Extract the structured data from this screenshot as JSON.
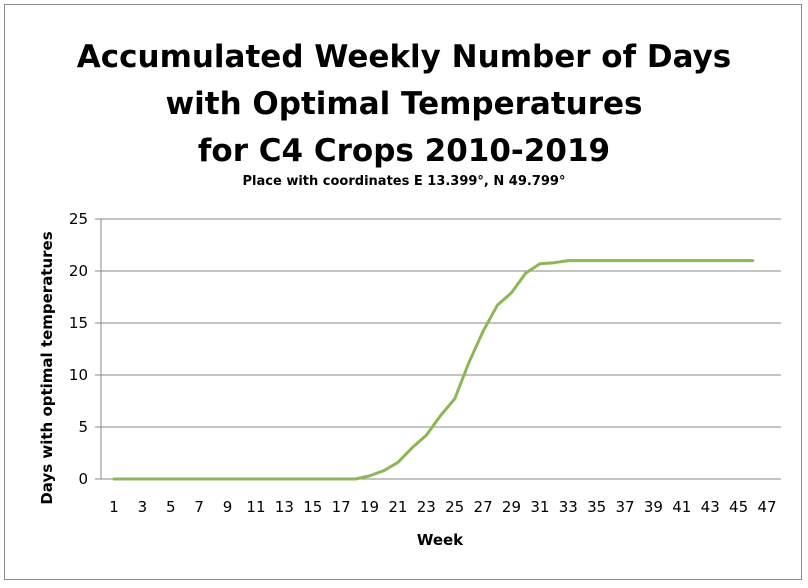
{
  "chart_data": {
    "type": "line",
    "title_lines": [
      "Accumulated Weekly Number of Days",
      "with Optimal Temperatures",
      "for C4 Crops 2010-2019"
    ],
    "subtitle": "Place with coordinates E 13.399°, N 49.799°",
    "xlabel": "Week",
    "ylabel": "Days with optimal temperatures",
    "xlim": [
      1,
      47
    ],
    "ylim": [
      0,
      25
    ],
    "x_tick_labels": [
      "1",
      "3",
      "5",
      "7",
      "9",
      "11",
      "13",
      "15",
      "17",
      "19",
      "21",
      "23",
      "25",
      "27",
      "29",
      "31",
      "33",
      "35",
      "37",
      "39",
      "41",
      "43",
      "45",
      "47"
    ],
    "y_tick_labels": [
      "0",
      "5",
      "10",
      "15",
      "20",
      "25"
    ],
    "grid": true,
    "legend": "none",
    "colors": {
      "line": "#8db657",
      "grid": "#898989",
      "axis": "#898989"
    },
    "series": [
      {
        "x": [
          1,
          2,
          3,
          4,
          5,
          6,
          7,
          8,
          9,
          10,
          11,
          12,
          13,
          14,
          15,
          16,
          17,
          18,
          19,
          20,
          21,
          22,
          23,
          24,
          25,
          26,
          27,
          28,
          29,
          30,
          31,
          32,
          33,
          34,
          35,
          36,
          37,
          38,
          39,
          40,
          41,
          42,
          43,
          44,
          45,
          46
        ],
        "values": [
          0,
          0,
          0,
          0,
          0,
          0,
          0,
          0,
          0,
          0,
          0,
          0,
          0,
          0,
          0,
          0,
          0,
          0,
          0.3,
          0.8,
          1.6,
          3.0,
          4.2,
          6.1,
          7.7,
          11.2,
          14.2,
          16.7,
          17.9,
          19.8,
          20.7,
          20.8,
          21.0,
          21.0,
          21.0,
          21.0,
          21.0,
          21.0,
          21.0,
          21.0,
          21.0,
          21.0,
          21.0,
          21.0,
          21.0,
          21.0
        ]
      }
    ]
  }
}
